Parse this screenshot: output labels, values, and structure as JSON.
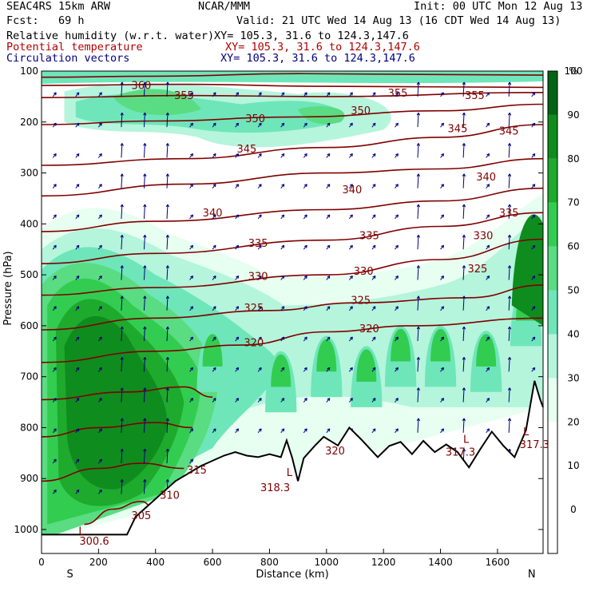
{
  "header": {
    "model": "SEAC4RS 15km ARW",
    "org": "NCAR/MMM",
    "init": "Init: 00 UTC Mon 12 Aug 13",
    "fcst": "Fcst:   69 h",
    "valid": "Valid: 21 UTC Wed 14 Aug 13 (16 CDT Wed 14 Aug 13)",
    "line1_label": "Relative humidity (w.r.t. water)",
    "line1_xy": "XY= 105.3, 31.6 to 124.3,147.6",
    "line2_label": "Potential temperature",
    "line2_xy": "XY= 105.3, 31.6 to 124.3,147.6",
    "line3_label": "Circulation vectors",
    "line3_xy": "XY= 105.3, 31.6 to 124.3,147.6"
  },
  "colors": {
    "black": "#000000",
    "theta": "#800000",
    "vectors": "#000080",
    "rh_label": "#000000"
  },
  "chart_data": {
    "type": "cross-section",
    "xlabel": "Distance (km)",
    "ylabel": "Pressure (hPa)",
    "xlim": [
      0,
      1760
    ],
    "ylim": [
      1000,
      100
    ],
    "x_ticks": [
      0,
      200,
      400,
      600,
      800,
      1000,
      1200,
      1400,
      1600
    ],
    "y_ticks": [
      100,
      200,
      300,
      400,
      500,
      600,
      700,
      800,
      900,
      1000
    ],
    "x_end_labels": {
      "left": "S",
      "right": "N"
    },
    "colorbar": {
      "unit": "%",
      "ticks": [
        0,
        10,
        20,
        30,
        40,
        50,
        60,
        70,
        80,
        90,
        100
      ],
      "colors": [
        "#ffffff",
        "#ffffff",
        "#ffffff",
        "#e6fff0",
        "#b4f5dc",
        "#6ee6b9",
        "#5adc82",
        "#32cd50",
        "#1eaa2d",
        "#0f8c1e",
        "#046414"
      ]
    },
    "theta_labels": [
      {
        "text": "360",
        "x": 350,
        "p": 135
      },
      {
        "text": "355",
        "x": 500,
        "p": 155
      },
      {
        "text": "355",
        "x": 1250,
        "p": 150
      },
      {
        "text": "355",
        "x": 1520,
        "p": 155
      },
      {
        "text": "350",
        "x": 750,
        "p": 200
      },
      {
        "text": "350",
        "x": 1120,
        "p": 185
      },
      {
        "text": "345",
        "x": 720,
        "p": 260
      },
      {
        "text": "345",
        "x": 1460,
        "p": 220
      },
      {
        "text": "345",
        "x": 1640,
        "p": 225
      },
      {
        "text": "340",
        "x": 600,
        "p": 385
      },
      {
        "text": "340",
        "x": 1090,
        "p": 340
      },
      {
        "text": "340",
        "x": 1560,
        "p": 315
      },
      {
        "text": "335",
        "x": 760,
        "p": 445
      },
      {
        "text": "335",
        "x": 1150,
        "p": 430
      },
      {
        "text": "335",
        "x": 1640,
        "p": 385
      },
      {
        "text": "330",
        "x": 760,
        "p": 510
      },
      {
        "text": "330",
        "x": 1130,
        "p": 500
      },
      {
        "text": "330",
        "x": 1550,
        "p": 430
      },
      {
        "text": "325",
        "x": 745,
        "p": 572
      },
      {
        "text": "325",
        "x": 1120,
        "p": 557
      },
      {
        "text": "325",
        "x": 1530,
        "p": 495
      },
      {
        "text": "320",
        "x": 745,
        "p": 640
      },
      {
        "text": "320",
        "x": 1150,
        "p": 613
      },
      {
        "text": "320",
        "x": 1030,
        "p": 853
      },
      {
        "text": "318.3",
        "x": 820,
        "p": 925
      },
      {
        "text": "317.3",
        "x": 1470,
        "p": 855
      },
      {
        "text": "317.3",
        "x": 1730,
        "p": 840
      },
      {
        "text": "315",
        "x": 545,
        "p": 890
      },
      {
        "text": "310",
        "x": 450,
        "p": 940
      },
      {
        "text": "305",
        "x": 350,
        "p": 980
      },
      {
        "text": "300.6",
        "x": 185,
        "p": 1030
      }
    ],
    "low_marks": [
      {
        "text": "L",
        "x": 140,
        "p": 1010
      },
      {
        "text": "L",
        "x": 870,
        "p": 895
      },
      {
        "text": "L",
        "x": 1490,
        "p": 830
      },
      {
        "text": "L",
        "x": 1700,
        "p": 815
      }
    ]
  }
}
